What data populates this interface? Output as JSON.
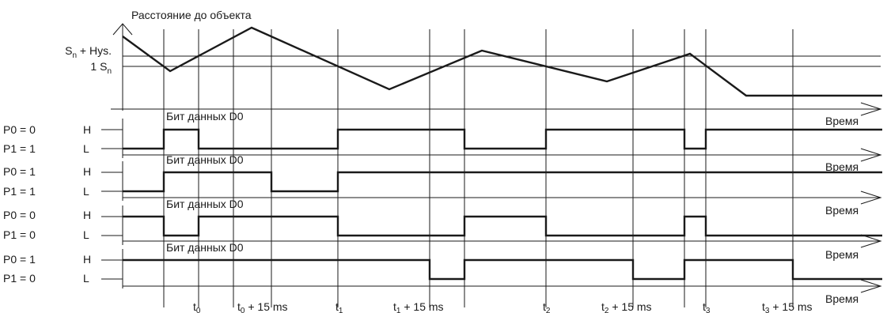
{
  "diagram": {
    "distance_axis_label": "Расстояние до объекта",
    "threshold_labels": {
      "hysteresis": "S_n + Hys.",
      "switch": "1 S_n"
    },
    "time_label": "Время",
    "data_bit_label": "Бит данных D0",
    "level_high": "H",
    "level_low": "L",
    "time_markers": [
      "t0",
      "t0 + 15 ms",
      "t1",
      "t1 + 15 ms",
      "t2",
      "t2 + 15 ms",
      "t3",
      "t3 + 15 ms"
    ],
    "channels": [
      {
        "p0": "P0 = 0",
        "p1": "P1 = 1"
      },
      {
        "p0": "P0 = 1",
        "p1": "P1 = 1"
      },
      {
        "p0": "P0 = 0",
        "p1": "P1 = 0"
      },
      {
        "p0": "P0 = 1",
        "p1": "P1 = 0"
      }
    ]
  }
}
